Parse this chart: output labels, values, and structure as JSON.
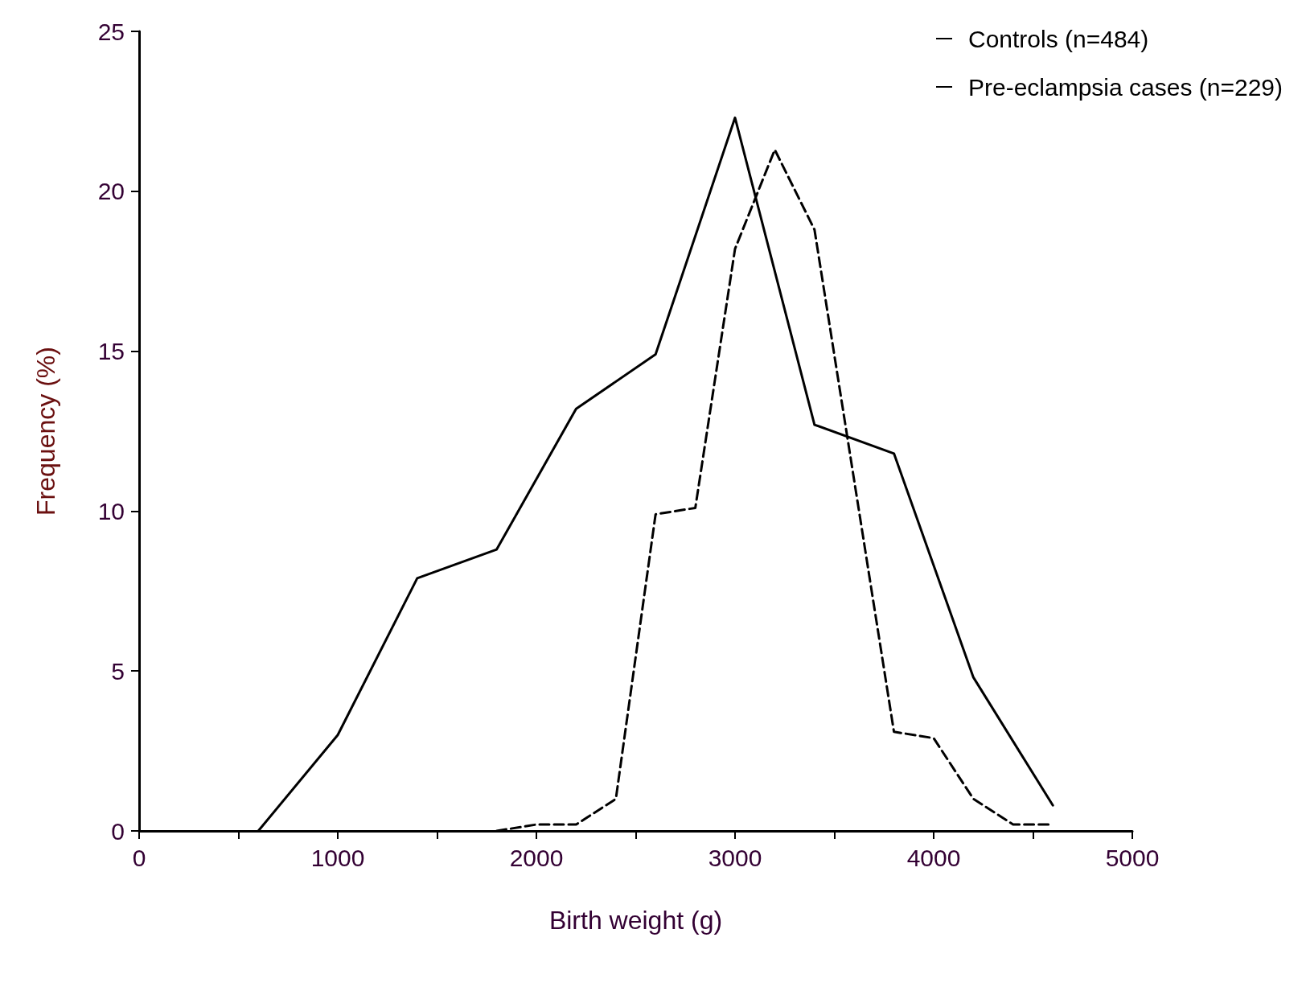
{
  "chart_data": {
    "type": "line",
    "xlabel": "Birth weight (g)",
    "ylabel": "Frequency (%)",
    "xlim": [
      0,
      5000
    ],
    "xticks": [
      0,
      {
        "value": 500,
        "label": null
      },
      1000,
      {
        "value": 1500,
        "label": null
      },
      2000,
      {
        "value": 2500,
        "label": null
      },
      3000,
      {
        "value": 3500,
        "label": null
      },
      4000,
      {
        "value": 4500,
        "label": null
      },
      5000
    ],
    "ylim": [
      0,
      25
    ],
    "yticks": [
      0,
      5,
      10,
      15,
      20,
      25
    ],
    "grid": false,
    "legend": "top right",
    "marker": "none",
    "series": [
      {
        "name": "Controls (n=484)",
        "color": "#000000",
        "line_style": "dashed",
        "x": [
          1800,
          2000,
          2200,
          2400,
          2600,
          2800,
          3000,
          3200,
          3400,
          3800,
          4000,
          4200,
          4400,
          4600
        ],
        "values": [
          0,
          0.2,
          0.2,
          1.0,
          9.9,
          10.1,
          18.2,
          21.3,
          18.8,
          3.1,
          2.9,
          1.0,
          0.2,
          0.2
        ]
      },
      {
        "name": "Pre-eclampsia cases (n=229)",
        "color": "#000000",
        "line_style": "solid",
        "x": [
          600,
          1000,
          1400,
          1800,
          2200,
          2600,
          3000,
          3400,
          3800,
          4200,
          4600
        ],
        "values": [
          0,
          3.0,
          7.9,
          8.8,
          13.2,
          14.9,
          22.3,
          12.7,
          11.8,
          4.8,
          0.8
        ]
      }
    ]
  }
}
